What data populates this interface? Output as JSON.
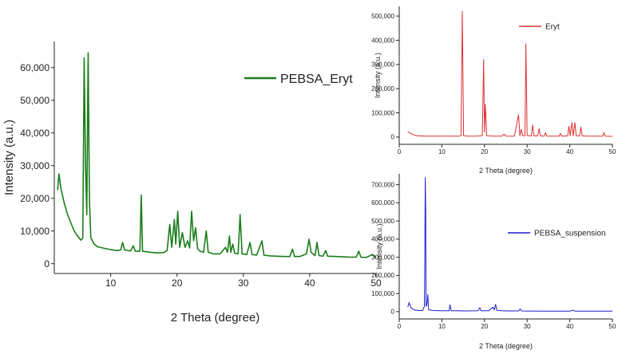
{
  "chart_data": [
    {
      "type": "line",
      "xlabel": "2 Theta (degree)",
      "ylabel": "Intensity (a.u.)",
      "xlim": [
        1.5,
        50
      ],
      "ylim": [
        -3000,
        68000
      ],
      "x_ticks": [
        10,
        20,
        30,
        40,
        50
      ],
      "y_ticks": [
        0,
        10000,
        20000,
        30000,
        40000,
        50000,
        60000
      ],
      "y_tick_labels": [
        "0",
        "10,000",
        "20,000",
        "30,000",
        "40,000",
        "50,000",
        "60,000"
      ],
      "legend_position": "top-right",
      "series": [
        {
          "name": "PEBSA_Eryt",
          "color": "#1a7d1a",
          "points": [
            [
              2.0,
              22500
            ],
            [
              2.2,
              27500
            ],
            [
              2.5,
              23000
            ],
            [
              3,
              18500
            ],
            [
              3.5,
              15000
            ],
            [
              4,
              12500
            ],
            [
              4.5,
              10000
            ],
            [
              5,
              8500
            ],
            [
              5.5,
              7200
            ],
            [
              5.8,
              7800
            ],
            [
              6.0,
              63000
            ],
            [
              6.2,
              30000
            ],
            [
              6.4,
              15000
            ],
            [
              6.6,
              64500
            ],
            [
              6.8,
              20000
            ],
            [
              7,
              8000
            ],
            [
              7.5,
              6000
            ],
            [
              8,
              5200
            ],
            [
              9,
              4700
            ],
            [
              10,
              4300
            ],
            [
              11,
              4000
            ],
            [
              11.5,
              4200
            ],
            [
              11.8,
              6500
            ],
            [
              12.1,
              4200
            ],
            [
              13,
              3900
            ],
            [
              13.4,
              5500
            ],
            [
              13.7,
              3800
            ],
            [
              14.4,
              3800
            ],
            [
              14.6,
              21000
            ],
            [
              14.8,
              3800
            ],
            [
              16,
              3500
            ],
            [
              17,
              3300
            ],
            [
              18,
              3400
            ],
            [
              18.5,
              4000
            ],
            [
              18.9,
              12000
            ],
            [
              19.2,
              5000
            ],
            [
              19.6,
              13500
            ],
            [
              19.8,
              6000
            ],
            [
              20.1,
              16000
            ],
            [
              20.4,
              5000
            ],
            [
              20.8,
              9500
            ],
            [
              21.2,
              5000
            ],
            [
              21.6,
              7000
            ],
            [
              21.9,
              4800
            ],
            [
              22.2,
              16000
            ],
            [
              22.5,
              7000
            ],
            [
              22.8,
              11000
            ],
            [
              23.1,
              4500
            ],
            [
              23.5,
              3800
            ],
            [
              24,
              3500
            ],
            [
              24.4,
              10000
            ],
            [
              24.7,
              3500
            ],
            [
              25.5,
              3000
            ],
            [
              26.5,
              3000
            ],
            [
              27.3,
              5000
            ],
            [
              27.6,
              3500
            ],
            [
              27.9,
              8500
            ],
            [
              28.1,
              3500
            ],
            [
              28.4,
              6000
            ],
            [
              28.7,
              3200
            ],
            [
              29.2,
              3000
            ],
            [
              29.5,
              15000
            ],
            [
              29.8,
              3000
            ],
            [
              30.5,
              2800
            ],
            [
              31,
              6500
            ],
            [
              31.3,
              2800
            ],
            [
              32,
              2600
            ],
            [
              32.8,
              7000
            ],
            [
              33.1,
              2600
            ],
            [
              34,
              2400
            ],
            [
              35,
              2300
            ],
            [
              36,
              2200
            ],
            [
              37,
              2200
            ],
            [
              37.4,
              4500
            ],
            [
              37.7,
              2200
            ],
            [
              38.5,
              2200
            ],
            [
              39.5,
              3000
            ],
            [
              39.9,
              7500
            ],
            [
              40.2,
              3500
            ],
            [
              40.8,
              2500
            ],
            [
              41.1,
              6500
            ],
            [
              41.4,
              2500
            ],
            [
              42,
              2300
            ],
            [
              42.4,
              4000
            ],
            [
              42.7,
              2300
            ],
            [
              44,
              2200
            ],
            [
              45,
              2100
            ],
            [
              46,
              2000
            ],
            [
              47,
              2000
            ],
            [
              47.4,
              3800
            ],
            [
              47.7,
              2000
            ],
            [
              48.5,
              1900
            ],
            [
              49.5,
              2800
            ],
            [
              50,
              1800
            ]
          ]
        }
      ]
    },
    {
      "type": "line",
      "xlabel": "2 Theta (degree)",
      "ylabel": "Intensity (a.u.)",
      "xlim": [
        0,
        50
      ],
      "ylim": [
        -30000,
        540000
      ],
      "x_ticks": [
        0,
        10,
        20,
        30,
        40,
        50
      ],
      "y_ticks": [
        0,
        100000,
        200000,
        300000,
        400000,
        500000
      ],
      "y_tick_labels": [
        "0",
        "100,000",
        "200,000",
        "300,000",
        "400,000",
        "500,000"
      ],
      "legend_position": "top-right",
      "series": [
        {
          "name": "Eryt",
          "color": "#e03030",
          "points": [
            [
              2,
              22000
            ],
            [
              3,
              12000
            ],
            [
              4,
              6000
            ],
            [
              6,
              4000
            ],
            [
              8,
              3500
            ],
            [
              10,
              3500
            ],
            [
              12,
              3500
            ],
            [
              14,
              4000
            ],
            [
              14.5,
              6000
            ],
            [
              14.8,
              520000
            ],
            [
              15.1,
              6000
            ],
            [
              16,
              4000
            ],
            [
              18,
              4000
            ],
            [
              19.5,
              6000
            ],
            [
              19.8,
              320000
            ],
            [
              20.0,
              20000
            ],
            [
              20.2,
              135000
            ],
            [
              20.5,
              6000
            ],
            [
              22,
              4000
            ],
            [
              24,
              4000
            ],
            [
              24.6,
              12000
            ],
            [
              25,
              4000
            ],
            [
              27,
              4000
            ],
            [
              28.0,
              92000
            ],
            [
              28.3,
              5000
            ],
            [
              28.6,
              32000
            ],
            [
              29,
              5000
            ],
            [
              29.5,
              6000
            ],
            [
              29.7,
              385000
            ],
            [
              30.0,
              6000
            ],
            [
              31,
              5000
            ],
            [
              31.3,
              50000
            ],
            [
              31.6,
              5000
            ],
            [
              32.5,
              5000
            ],
            [
              32.8,
              35000
            ],
            [
              33.1,
              5000
            ],
            [
              34,
              4000
            ],
            [
              34.3,
              18000
            ],
            [
              34.6,
              4000
            ],
            [
              36,
              4000
            ],
            [
              37.5,
              4000
            ],
            [
              37.8,
              15000
            ],
            [
              38.1,
              4000
            ],
            [
              39.5,
              5000
            ],
            [
              39.8,
              45000
            ],
            [
              40.1,
              5000
            ],
            [
              40.5,
              60000
            ],
            [
              40.8,
              5000
            ],
            [
              41.2,
              60000
            ],
            [
              41.5,
              5000
            ],
            [
              42.3,
              5000
            ],
            [
              42.6,
              42000
            ],
            [
              42.9,
              5000
            ],
            [
              44,
              4000
            ],
            [
              46,
              3500
            ],
            [
              47.7,
              3500
            ],
            [
              48,
              18000
            ],
            [
              48.3,
              3500
            ],
            [
              50,
              3000
            ]
          ]
        }
      ]
    },
    {
      "type": "line",
      "xlabel": "2 Theta (degree)",
      "ylabel": "Intensity (a.u.)",
      "xlim": [
        0,
        50
      ],
      "ylim": [
        -40000,
        760000
      ],
      "x_ticks": [
        0,
        10,
        20,
        30,
        40,
        50
      ],
      "y_ticks": [
        0,
        100000,
        200000,
        300000,
        400000,
        500000,
        600000,
        700000
      ],
      "y_tick_labels": [
        "0",
        "100,000",
        "200,000",
        "300,000",
        "400,000",
        "500,000",
        "600,000",
        "700,000"
      ],
      "legend_position": "middle-right",
      "series": [
        {
          "name": "PEBSA_suspension",
          "color": "#1c1cd0",
          "points": [
            [
              2,
              25000
            ],
            [
              2.3,
              50000
            ],
            [
              2.8,
              20000
            ],
            [
              3.5,
              10000
            ],
            [
              4.5,
              6000
            ],
            [
              5.5,
              6000
            ],
            [
              5.9,
              30000
            ],
            [
              6.0,
              250000
            ],
            [
              6.1,
              740000
            ],
            [
              6.2,
              580000
            ],
            [
              6.3,
              30000
            ],
            [
              6.5,
              40000
            ],
            [
              6.7,
              95000
            ],
            [
              6.9,
              10000
            ],
            [
              8,
              6000
            ],
            [
              10,
              5000
            ],
            [
              11.7,
              5000
            ],
            [
              11.9,
              38000
            ],
            [
              12.2,
              5000
            ],
            [
              14,
              5000
            ],
            [
              15,
              4000
            ],
            [
              18.5,
              5000
            ],
            [
              18.9,
              22000
            ],
            [
              19.2,
              5000
            ],
            [
              21,
              5000
            ],
            [
              21.5,
              16000
            ],
            [
              22.0,
              25000
            ],
            [
              22.3,
              10000
            ],
            [
              22.6,
              40000
            ],
            [
              22.9,
              8000
            ],
            [
              24,
              5000
            ],
            [
              26,
              4000
            ],
            [
              28,
              4000
            ],
            [
              28.4,
              15000
            ],
            [
              28.7,
              4000
            ],
            [
              30,
              3500
            ],
            [
              35,
              3000
            ],
            [
              40,
              3000
            ],
            [
              40.8,
              8000
            ],
            [
              41.2,
              3000
            ],
            [
              45,
              2500
            ],
            [
              50,
              2500
            ]
          ]
        }
      ]
    }
  ]
}
